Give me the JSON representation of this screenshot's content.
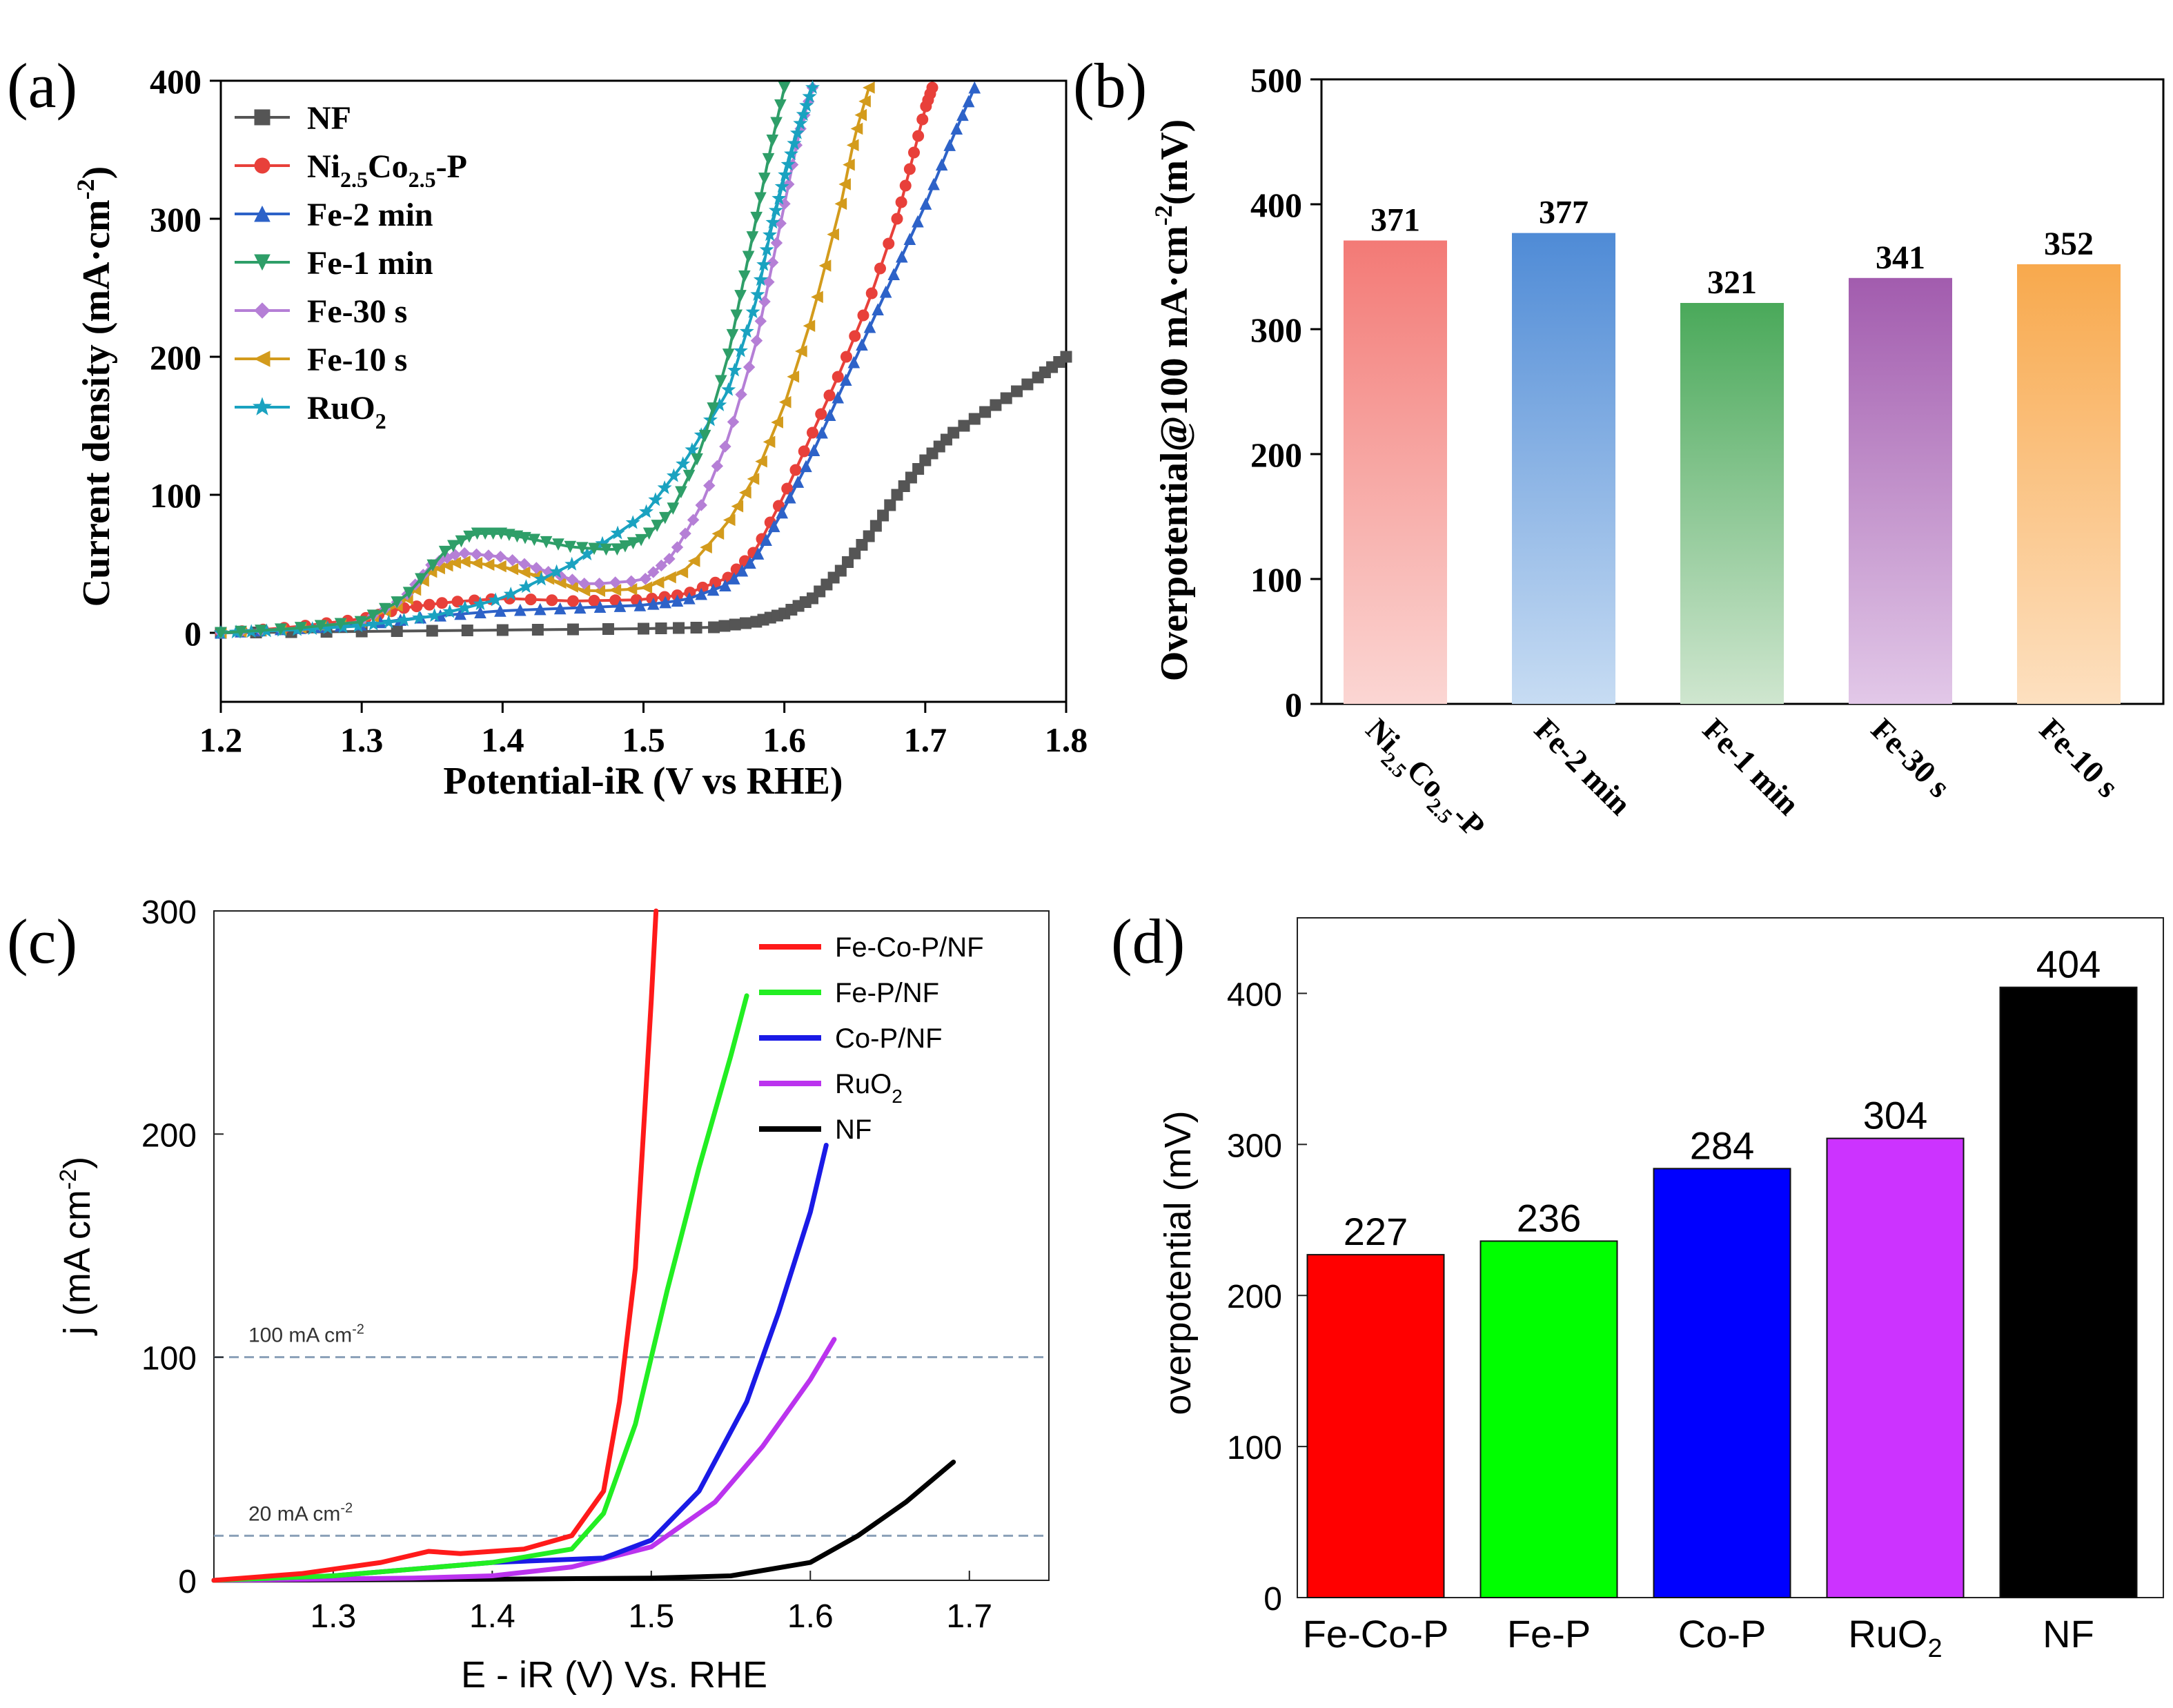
{
  "colors": {
    "NF_a": "#555555",
    "NiCo": "#e8403a",
    "Fe2": "#2d62c8",
    "Fe1": "#2e9e68",
    "Fe30": "#b57fd6",
    "Fe10": "#d39b1c",
    "RuO2_a": "#1aa2c0",
    "FeCoP": "#ff1a1a",
    "FeP": "#22ee22",
    "CoP": "#1a1ae6",
    "RuO2_c": "#bb33ee",
    "NF_c": "#000000",
    "b_bars": [
      "#f37a76",
      "#4f8bd6",
      "#4aa95a",
      "#a25cae",
      "#f8a94d"
    ],
    "b_bars_light": [
      "#fbd6d3",
      "#c7dcf3",
      "#cfe6cf",
      "#e2c8e8",
      "#fde0c0"
    ],
    "d_bars": [
      "#ff0000",
      "#00ff00",
      "#0000ff",
      "#cc33ff",
      "#000000"
    ]
  },
  "chart_data": [
    {
      "id": "a",
      "panel_label": "(a)",
      "type": "line",
      "xlabel": "Potential-iR (V vs RHE)",
      "ylabel": "Current density (mA·cm",
      "ylabel_sup": "-2",
      "ylabel_end": ")",
      "xlim": [
        1.2,
        1.8
      ],
      "ylim": [
        -50,
        400
      ],
      "xticks": [
        "1.2",
        "1.3",
        "1.4",
        "1.5",
        "1.6",
        "1.7",
        "1.8"
      ],
      "yticks": [
        "0",
        "100",
        "200",
        "300",
        "400"
      ],
      "legend": [
        {
          "label": "NF",
          "sub": ""
        },
        {
          "label": "Ni",
          "sub": "2.5",
          "label2": "Co",
          "sub2": "2.5",
          "label3": "-P"
        },
        {
          "label": "Fe-2 min",
          "sub": ""
        },
        {
          "label": "Fe-1 min",
          "sub": ""
        },
        {
          "label": "Fe-30 s",
          "sub": ""
        },
        {
          "label": "Fe-10 s",
          "sub": ""
        },
        {
          "label": "RuO",
          "sub": "2"
        }
      ],
      "series": [
        {
          "name": "NF",
          "marker": "square",
          "color_key": "NF_a",
          "x": [
            1.2,
            1.3,
            1.4,
            1.5,
            1.55,
            1.58,
            1.6,
            1.62,
            1.64,
            1.66,
            1.68,
            1.7,
            1.72,
            1.75,
            1.78,
            1.8
          ],
          "y": [
            0,
            1,
            2,
            3,
            4,
            8,
            14,
            25,
            45,
            70,
            100,
            125,
            145,
            165,
            185,
            200
          ]
        },
        {
          "name": "Ni2.5Co2.5-P",
          "marker": "circle",
          "color_key": "NiCo",
          "x": [
            1.2,
            1.25,
            1.3,
            1.33,
            1.36,
            1.4,
            1.45,
            1.5,
            1.53,
            1.56,
            1.58,
            1.6,
            1.62,
            1.64,
            1.66,
            1.68,
            1.69,
            1.7,
            1.705
          ],
          "y": [
            0,
            4,
            10,
            18,
            22,
            25,
            23,
            24,
            28,
            40,
            60,
            100,
            145,
            190,
            240,
            300,
            340,
            380,
            395
          ]
        },
        {
          "name": "Fe-2 min",
          "marker": "triangle-up",
          "color_key": "Fe2",
          "x": [
            1.2,
            1.25,
            1.3,
            1.35,
            1.4,
            1.45,
            1.5,
            1.53,
            1.56,
            1.58,
            1.6,
            1.62,
            1.64,
            1.66,
            1.68,
            1.7,
            1.72,
            1.735
          ],
          "y": [
            0,
            3,
            6,
            12,
            16,
            18,
            20,
            24,
            35,
            55,
            90,
            130,
            175,
            220,
            265,
            310,
            360,
            395
          ]
        },
        {
          "name": "Fe-1 min",
          "marker": "triangle-down",
          "color_key": "Fe1",
          "x": [
            1.2,
            1.25,
            1.3,
            1.33,
            1.36,
            1.38,
            1.4,
            1.42,
            1.45,
            1.48,
            1.5,
            1.52,
            1.54,
            1.56,
            1.57,
            1.58,
            1.59,
            1.6
          ],
          "y": [
            0,
            3,
            8,
            25,
            60,
            72,
            72,
            68,
            62,
            60,
            68,
            88,
            130,
            200,
            250,
            300,
            350,
            395
          ]
        },
        {
          "name": "Fe-30 s",
          "marker": "diamond",
          "color_key": "Fe30",
          "x": [
            1.2,
            1.25,
            1.3,
            1.33,
            1.35,
            1.37,
            1.4,
            1.43,
            1.46,
            1.5,
            1.52,
            1.54,
            1.56,
            1.58,
            1.59,
            1.6,
            1.61,
            1.62
          ],
          "y": [
            0,
            3,
            8,
            25,
            50,
            58,
            55,
            45,
            35,
            38,
            55,
            90,
            140,
            210,
            260,
            310,
            360,
            395
          ]
        },
        {
          "name": "Fe-10 s",
          "marker": "triangle-left",
          "color_key": "Fe10",
          "x": [
            1.2,
            1.25,
            1.3,
            1.33,
            1.35,
            1.37,
            1.4,
            1.43,
            1.46,
            1.5,
            1.53,
            1.56,
            1.58,
            1.6,
            1.62,
            1.64,
            1.65,
            1.66
          ],
          "y": [
            0,
            3,
            8,
            22,
            45,
            52,
            48,
            40,
            30,
            32,
            45,
            80,
            115,
            165,
            230,
            310,
            360,
            395
          ]
        },
        {
          "name": "RuO2",
          "marker": "star",
          "color_key": "RuO2_a",
          "x": [
            1.2,
            1.25,
            1.3,
            1.35,
            1.4,
            1.45,
            1.5,
            1.53,
            1.56,
            1.58,
            1.59,
            1.6,
            1.61,
            1.62
          ],
          "y": [
            0,
            2,
            5,
            12,
            25,
            50,
            85,
            125,
            175,
            240,
            290,
            330,
            365,
            395
          ]
        }
      ]
    },
    {
      "id": "b",
      "panel_label": "(b)",
      "type": "bar",
      "ylabel": "Overpotential@100 mA·cm",
      "ylabel_sup": "-2",
      "ylabel_end": "(mV)",
      "ylim": [
        0,
        500
      ],
      "yticks": [
        "0",
        "100",
        "200",
        "300",
        "400",
        "500"
      ],
      "categories": [
        "Ni2.5Co2.5-P",
        "Fe-2 min",
        "Fe-1 min",
        "Fe-30 s",
        "Fe-10 s"
      ],
      "category_labels": [
        {
          "label": "Ni",
          "sub": "2.5",
          "label2": "Co",
          "sub2": "2.5",
          "label3": "-P"
        },
        {
          "label": "Fe-2 min"
        },
        {
          "label": "Fe-1 min"
        },
        {
          "label": "Fe-30 s"
        },
        {
          "label": "Fe-10 s"
        }
      ],
      "values": [
        371,
        377,
        321,
        341,
        352
      ],
      "value_labels": [
        "371",
        "377",
        "321",
        "341",
        "352"
      ]
    },
    {
      "id": "c",
      "panel_label": "(c)",
      "type": "line",
      "xlabel": "E - iR (V) Vs. RHE",
      "ylabel": "j (mA cm",
      "ylabel_sup": "-2",
      "ylabel_end": ")",
      "xlim": [
        1.225,
        1.75
      ],
      "ylim": [
        0,
        300
      ],
      "xticks": [
        "1.3",
        "1.4",
        "1.5",
        "1.6",
        "1.7"
      ],
      "yticks": [
        "0",
        "100",
        "200",
        "300"
      ],
      "reference_lines": [
        {
          "y": 100,
          "label": "100 mA cm",
          "sup": "-2"
        },
        {
          "y": 20,
          "label": "20 mA cm",
          "sup": "-2"
        }
      ],
      "legend": [
        {
          "label": "Fe-Co-P/NF",
          "sub": ""
        },
        {
          "label": "Fe-P/NF",
          "sub": ""
        },
        {
          "label": "Co-P/NF",
          "sub": ""
        },
        {
          "label": "RuO",
          "sub": "2"
        },
        {
          "label": "NF",
          "sub": ""
        }
      ],
      "series": [
        {
          "name": "Fe-Co-P/NF",
          "color_key": "FeCoP",
          "x": [
            1.225,
            1.28,
            1.33,
            1.36,
            1.38,
            1.42,
            1.45,
            1.47,
            1.48,
            1.49,
            1.495,
            1.5,
            1.503
          ],
          "y": [
            0,
            3,
            8,
            13,
            12,
            14,
            20,
            40,
            80,
            140,
            200,
            260,
            300
          ]
        },
        {
          "name": "Fe-P/NF",
          "color_key": "FeP",
          "x": [
            1.225,
            1.3,
            1.35,
            1.4,
            1.45,
            1.47,
            1.49,
            1.51,
            1.53,
            1.55,
            1.56
          ],
          "y": [
            0,
            2,
            5,
            8,
            14,
            30,
            70,
            130,
            185,
            235,
            262
          ]
        },
        {
          "name": "Co-P/NF",
          "color_key": "CoP",
          "x": [
            1.225,
            1.3,
            1.35,
            1.4,
            1.47,
            1.5,
            1.53,
            1.56,
            1.58,
            1.6,
            1.61
          ],
          "y": [
            0,
            2,
            5,
            8,
            10,
            18,
            40,
            80,
            120,
            165,
            195
          ]
        },
        {
          "name": "RuO2",
          "color_key": "RuO2_c",
          "x": [
            1.225,
            1.35,
            1.4,
            1.45,
            1.5,
            1.54,
            1.57,
            1.6,
            1.615
          ],
          "y": [
            0,
            1,
            2,
            6,
            15,
            35,
            60,
            90,
            108
          ]
        },
        {
          "name": "NF",
          "color_key": "NF_c",
          "x": [
            1.225,
            1.4,
            1.5,
            1.55,
            1.6,
            1.63,
            1.66,
            1.69
          ],
          "y": [
            0,
            0.5,
            1,
            2,
            8,
            20,
            35,
            53
          ]
        }
      ]
    },
    {
      "id": "d",
      "panel_label": "(d)",
      "type": "bar",
      "ylabel": "overpotential (mV)",
      "ylim": [
        0,
        450
      ],
      "yticks": [
        "0",
        "100",
        "200",
        "300",
        "400"
      ],
      "categories": [
        "Fe-Co-P",
        "Fe-P",
        "Co-P",
        "RuO2",
        "NF"
      ],
      "category_labels": [
        {
          "label": "Fe-Co-P"
        },
        {
          "label": "Fe-P"
        },
        {
          "label": "Co-P"
        },
        {
          "label": "RuO",
          "sub": "2"
        },
        {
          "label": "NF"
        }
      ],
      "values": [
        227,
        236,
        284,
        304,
        404
      ],
      "value_labels": [
        "227",
        "236",
        "284",
        "304",
        "404"
      ]
    }
  ]
}
